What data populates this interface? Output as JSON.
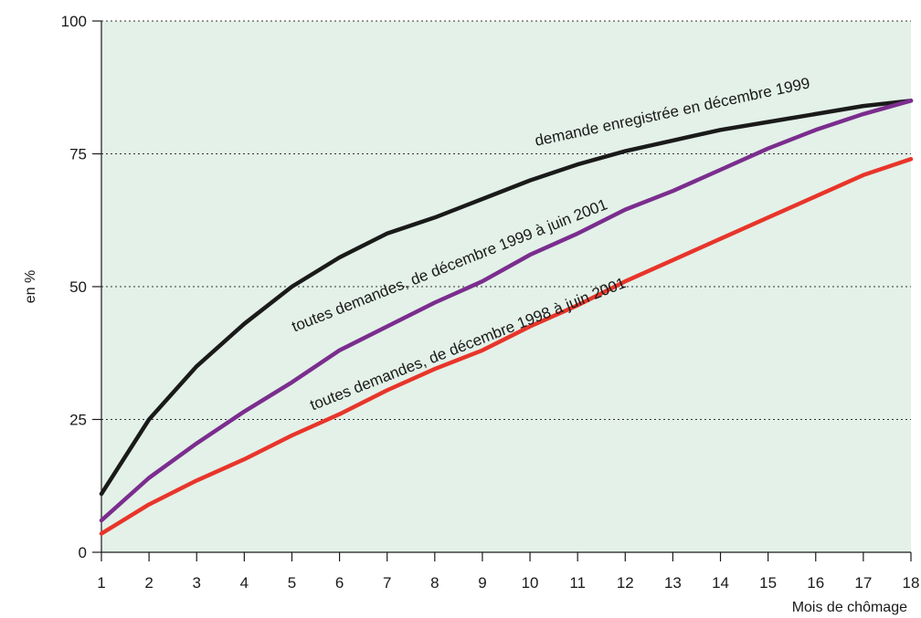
{
  "chart_data": {
    "type": "line",
    "xlabel": "Mois de chômage",
    "ylabel": "en %",
    "x": [
      1,
      2,
      3,
      4,
      5,
      6,
      7,
      8,
      9,
      10,
      11,
      12,
      13,
      14,
      15,
      16,
      17,
      18
    ],
    "xlim": [
      1,
      18
    ],
    "ylim": [
      0,
      100
    ],
    "yticks": [
      0,
      25,
      50,
      75,
      100
    ],
    "grid": "horizontal dotted",
    "background_color": "#e3f1e8",
    "series": [
      {
        "name": "demande enregistrée en décembre 1999",
        "color": "#1a1a1a",
        "values": [
          11,
          25,
          35,
          43,
          50,
          55.5,
          60,
          63,
          66.5,
          70,
          73,
          75.5,
          77.5,
          79.5,
          81,
          82.5,
          84,
          85
        ]
      },
      {
        "name": "toutes demandes, de décembre 1999 à juin 2001",
        "color": "#7b2d8e",
        "values": [
          6,
          14,
          20.5,
          26.5,
          32,
          38,
          42.5,
          47,
          51,
          56,
          60,
          64.5,
          68,
          72,
          76,
          79.5,
          82.5,
          85
        ]
      },
      {
        "name": "toutes demandes, de décembre 1998 à juin 2001",
        "color": "#e8352a",
        "values": [
          3.5,
          9,
          13.5,
          17.5,
          22,
          26,
          30.5,
          34.5,
          38,
          42.5,
          46.5,
          51,
          55,
          59,
          63,
          67,
          71,
          74
        ]
      }
    ]
  }
}
